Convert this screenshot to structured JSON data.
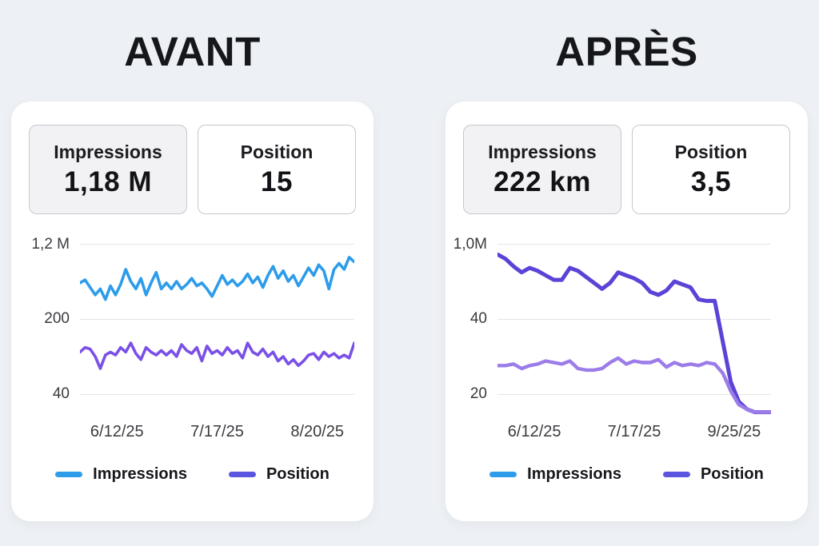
{
  "panels": [
    {
      "title": "AVANT",
      "metrics": [
        {
          "label": "Impressions",
          "value": "1,18 M"
        },
        {
          "label": "Position",
          "value": "15"
        }
      ],
      "y_ticks": [
        "1,2 M",
        "200",
        "40"
      ],
      "x_ticks": [
        "6/12/25",
        "7/17/25",
        "8/20/25"
      ],
      "legend": [
        {
          "label": "Impressions",
          "color": "#2d9ceb"
        },
        {
          "label": "Position",
          "color": "#5c55e0"
        }
      ]
    },
    {
      "title": "APRÈS",
      "metrics": [
        {
          "label": "Impressions",
          "value": "222 km"
        },
        {
          "label": "Position",
          "value": "3,5"
        }
      ],
      "y_ticks": [
        "1,0M",
        "40",
        "20"
      ],
      "x_ticks": [
        "6/12/25",
        "7/17/25",
        "9/25/25"
      ],
      "legend": [
        {
          "label": "Impressions",
          "color": "#2d9ceb"
        },
        {
          "label": "Position",
          "color": "#5c55e0"
        }
      ]
    }
  ],
  "chart_data": [
    {
      "type": "line",
      "title": "AVANT",
      "x_ticks": [
        "6/12/25",
        "7/17/25",
        "8/20/25"
      ],
      "y_ticks": [
        "1,2 M",
        "200",
        "40"
      ],
      "grid": true,
      "legend_position": "bottom",
      "value_scale": "percent of plot height: 0 = bottom gridline (40), 100 = top gridline (1,2 M)",
      "series": [
        {
          "name": "Impressions",
          "color": "#2d9ceb",
          "width": 3.6,
          "values": [
            74,
            76,
            71,
            66,
            70,
            63,
            72,
            66,
            73,
            83,
            75,
            70,
            77,
            66,
            74,
            81,
            70,
            74,
            70,
            75,
            70,
            73,
            77,
            72,
            74,
            70,
            65,
            72,
            79,
            73,
            76,
            72,
            75,
            80,
            74,
            78,
            71,
            79,
            85,
            77,
            82,
            75,
            79,
            72,
            78,
            84,
            79,
            86,
            82,
            70,
            83,
            87,
            83,
            91,
            88
          ]
        },
        {
          "name": "Position",
          "color": "#7a50e6",
          "width": 3.6,
          "values": [
            28,
            31,
            30,
            25,
            17,
            26,
            28,
            26,
            31,
            28,
            34,
            27,
            23,
            31,
            28,
            26,
            29,
            26,
            29,
            25,
            33,
            29,
            27,
            31,
            22,
            32,
            27,
            29,
            26,
            31,
            27,
            29,
            24,
            34,
            28,
            26,
            30,
            25,
            28,
            22,
            25,
            20,
            23,
            19,
            22,
            26,
            27,
            23,
            28,
            25,
            27,
            24,
            26,
            24,
            34
          ]
        }
      ]
    },
    {
      "type": "line",
      "title": "APRÈS",
      "x_ticks": [
        "6/12/25",
        "7/17/25",
        "9/25/25"
      ],
      "y_ticks": [
        "1,0M",
        "40",
        "20"
      ],
      "grid": true,
      "legend_position": "bottom",
      "value_scale": "percent of plot height: 0 = bottom gridline (20), 100 = top gridline (1,0M); negative = below bottom gridline",
      "series": [
        {
          "name": "Position",
          "color": "#5a43d6",
          "width": 5,
          "values": [
            93,
            90,
            85,
            81,
            84,
            82,
            79,
            76,
            76,
            84,
            82,
            78,
            74,
            70,
            74,
            81,
            79,
            77,
            74,
            68,
            66,
            69,
            75,
            73,
            71,
            63,
            62,
            62,
            35,
            8,
            -5,
            -10,
            -12,
            -12,
            -12
          ]
        },
        {
          "name": "Impressions",
          "color": "#9c7ce9",
          "width": 4.4,
          "values": [
            19,
            19,
            20,
            17,
            19,
            20,
            22,
            21,
            20,
            22,
            17,
            16,
            16,
            17,
            21,
            24,
            20,
            22,
            21,
            21,
            23,
            18,
            21,
            19,
            20,
            19,
            21,
            20,
            14,
            2,
            -7,
            -10,
            -12,
            -12,
            -12
          ]
        }
      ]
    }
  ]
}
